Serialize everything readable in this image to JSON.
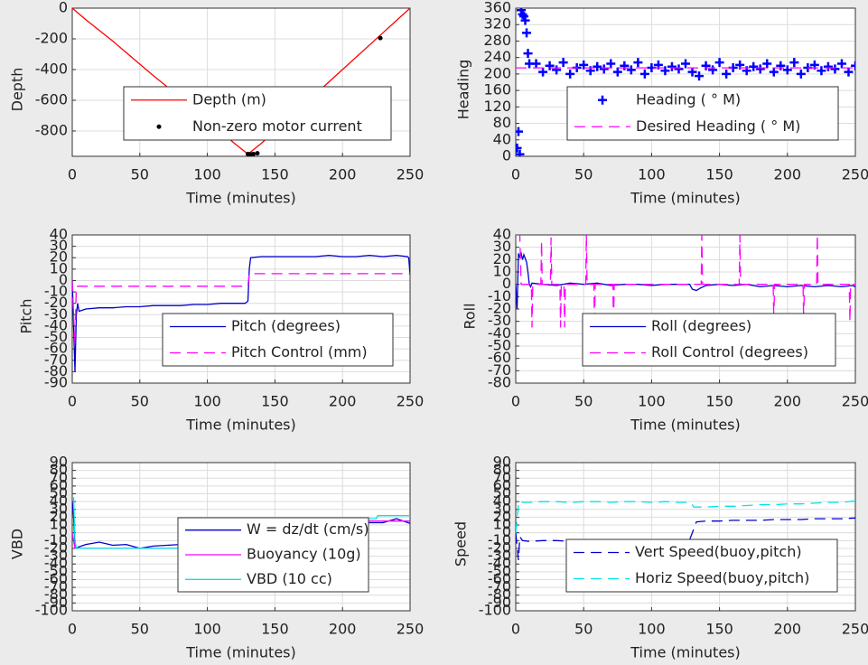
{
  "chart_data": [
    {
      "type": "line",
      "xlabel": "Time (minutes)",
      "ylabel": "Depth",
      "xlim": [
        0,
        250
      ],
      "ylim": [
        -965,
        0
      ],
      "xticks": [
        0,
        50,
        100,
        150,
        200,
        250
      ],
      "yticks": [
        0,
        -200,
        -400,
        -600,
        -800
      ],
      "grid": true,
      "series": [
        {
          "name": "Depth (m)",
          "color": "#ff0000",
          "style": "solid",
          "x": [
            0,
            10,
            20,
            30,
            40,
            50,
            60,
            70,
            80,
            90,
            100,
            110,
            120,
            130,
            140,
            150,
            160,
            170,
            180,
            190,
            200,
            210,
            220,
            230,
            240,
            250
          ],
          "values": [
            0,
            -75,
            -145,
            -215,
            -290,
            -365,
            -440,
            -510,
            -585,
            -660,
            -730,
            -805,
            -880,
            -950,
            -880,
            -800,
            -720,
            -640,
            -560,
            -480,
            -400,
            -320,
            -240,
            -160,
            -80,
            0
          ]
        },
        {
          "name": "Non-zero motor current",
          "color": "#000000",
          "style": "dot",
          "x": [
            130,
            132,
            134,
            137,
            228
          ],
          "values": [
            -950,
            -952,
            -950,
            -945,
            -195
          ]
        }
      ]
    },
    {
      "type": "line",
      "xlabel": "Time (minutes)",
      "ylabel": "Heading",
      "xlim": [
        0,
        250
      ],
      "ylim": [
        0,
        360
      ],
      "xticks": [
        0,
        50,
        100,
        150,
        200,
        250
      ],
      "yticks": [
        0,
        40,
        80,
        120,
        160,
        200,
        240,
        280,
        320,
        360
      ],
      "grid": true,
      "series": [
        {
          "name": "Heading ( ° M)",
          "color": "#0000ff",
          "style": "plus",
          "x": [
            1,
            2,
            3,
            4,
            5,
            6,
            7,
            8,
            9,
            10,
            15,
            20,
            25,
            30,
            35,
            40,
            45,
            50,
            55,
            60,
            65,
            70,
            75,
            80,
            85,
            90,
            95,
            100,
            105,
            110,
            115,
            120,
            125,
            130,
            135,
            140,
            145,
            150,
            155,
            160,
            165,
            170,
            175,
            180,
            185,
            190,
            195,
            200,
            205,
            210,
            215,
            220,
            225,
            230,
            235,
            240,
            245,
            250
          ],
          "values": [
            20,
            60,
            5,
            355,
            345,
            340,
            330,
            300,
            250,
            225,
            225,
            205,
            220,
            210,
            228,
            200,
            215,
            222,
            208,
            218,
            212,
            225,
            205,
            220,
            210,
            228,
            200,
            215,
            222,
            208,
            218,
            212,
            225,
            205,
            195,
            220,
            210,
            228,
            200,
            215,
            222,
            208,
            218,
            212,
            225,
            205,
            220,
            210,
            228,
            200,
            215,
            222,
            208,
            218,
            212,
            225,
            205,
            220
          ]
        },
        {
          "name": "Desired Heading ( ° M)",
          "color": "#ff00ff",
          "style": "dashed",
          "x": [
            0,
            250
          ],
          "values": [
            215,
            215
          ]
        }
      ]
    },
    {
      "type": "line",
      "xlabel": "Time (minutes)",
      "ylabel": "Pitch",
      "xlim": [
        0,
        250
      ],
      "ylim": [
        -90,
        40
      ],
      "xticks": [
        0,
        50,
        100,
        150,
        200,
        250
      ],
      "yticks": [
        40,
        30,
        20,
        10,
        0,
        -10,
        -20,
        -30,
        -40,
        -50,
        -60,
        -70,
        -80,
        -90
      ],
      "grid": true,
      "series": [
        {
          "name": "Pitch (degrees)",
          "color": "#0000cc",
          "style": "solid",
          "x": [
            0,
            1,
            2,
            3,
            4,
            5,
            10,
            20,
            30,
            40,
            50,
            60,
            70,
            80,
            90,
            100,
            110,
            120,
            128,
            130,
            131,
            132,
            140,
            150,
            160,
            170,
            180,
            190,
            200,
            210,
            220,
            230,
            240,
            248,
            249,
            250
          ],
          "values": [
            0,
            -40,
            -80,
            -30,
            -20,
            -27,
            -25,
            -24,
            -24,
            -23,
            -23,
            -22,
            -22,
            -22,
            -21,
            -21,
            -20,
            -20,
            -20,
            -18,
            10,
            20,
            21,
            21,
            21,
            21,
            21,
            22,
            21,
            21,
            22,
            21,
            22,
            21,
            20,
            5
          ]
        },
        {
          "name": "Pitch Control (mm)",
          "color": "#ff00ff",
          "style": "dashed",
          "x": [
            0,
            1,
            2,
            3,
            4,
            130,
            131,
            250
          ],
          "values": [
            0,
            -30,
            -55,
            -5,
            -5,
            -5,
            6,
            6
          ]
        }
      ]
    },
    {
      "type": "line",
      "xlabel": "Time (minutes)",
      "ylabel": "Roll",
      "xlim": [
        0,
        250
      ],
      "ylim": [
        -80,
        40
      ],
      "xticks": [
        0,
        50,
        100,
        150,
        200,
        250
      ],
      "yticks": [
        40,
        30,
        20,
        10,
        0,
        -10,
        -20,
        -30,
        -40,
        -50,
        -60,
        -70,
        -80
      ],
      "grid": true,
      "series": [
        {
          "name": "Roll (degrees)",
          "color": "#0000cc",
          "style": "solid",
          "x": [
            0,
            1,
            2,
            3,
            4,
            5,
            6,
            7,
            8,
            9,
            10,
            11,
            12,
            20,
            30,
            40,
            50,
            60,
            70,
            80,
            90,
            100,
            110,
            120,
            128,
            130,
            133,
            136,
            140,
            150,
            160,
            170,
            180,
            190,
            200,
            210,
            220,
            230,
            240,
            248,
            250
          ],
          "values": [
            0,
            -20,
            25,
            22,
            25,
            20,
            24,
            21,
            18,
            10,
            0,
            -2,
            1,
            0,
            -1,
            1,
            0,
            1,
            -1,
            0,
            0,
            -1,
            0,
            0,
            0,
            -4,
            -5,
            -3,
            -1,
            0,
            -1,
            0,
            -2,
            -1,
            -2,
            -1,
            -2,
            -1,
            -2,
            -1,
            -2
          ]
        },
        {
          "name": "Roll Control (degrees)",
          "color": "#ff00ff",
          "style": "dashed",
          "x": [
            0,
            3,
            4,
            11.5,
            12,
            12.5,
            18.5,
            19,
            19.5,
            25.5,
            26,
            26.5,
            32.5,
            33,
            33.5,
            35.5,
            36,
            36.5,
            51.5,
            52,
            52.5,
            57.5,
            58,
            58.5,
            71.5,
            72,
            72.5,
            136.5,
            137,
            137.5,
            164.5,
            165,
            165.5,
            189.5,
            190,
            190.5,
            211.5,
            212,
            212.5,
            221.5,
            222,
            222.5,
            245.5,
            246,
            246.5,
            250
          ],
          "values": [
            40,
            40,
            0,
            0,
            -35,
            0,
            0,
            35,
            0,
            0,
            38,
            0,
            0,
            -35,
            0,
            0,
            -35,
            0,
            0,
            40,
            0,
            0,
            -35,
            0,
            0,
            -35,
            0,
            0,
            40,
            0,
            0,
            40,
            0,
            0,
            -30,
            0,
            0,
            -30,
            0,
            0,
            40,
            0,
            0,
            -30,
            0,
            0
          ]
        }
      ]
    },
    {
      "type": "line",
      "xlabel": "Time (minutes)",
      "ylabel": "VBD",
      "xlim": [
        0,
        250
      ],
      "ylim": [
        -100,
        90
      ],
      "xticks": [
        0,
        50,
        100,
        150,
        200,
        250
      ],
      "yticks": [
        90,
        80,
        70,
        60,
        50,
        40,
        30,
        20,
        10,
        0,
        -10,
        -20,
        -30,
        -40,
        -50,
        -60,
        -70,
        -80,
        -90,
        -100
      ],
      "grid": true,
      "series": [
        {
          "name": "W = dz/dt (cm/s)",
          "color": "#0000cc",
          "style": "solid",
          "x": [
            0,
            1,
            2,
            3,
            5,
            10,
            20,
            30,
            40,
            50,
            60,
            70,
            80,
            90,
            100,
            110,
            120,
            128,
            130,
            132,
            140,
            150,
            160,
            170,
            180,
            190,
            200,
            210,
            220,
            230,
            240,
            245,
            250
          ],
          "values": [
            40,
            20,
            -15,
            -20,
            -18,
            -15,
            -12,
            -16,
            -15,
            -20,
            -17,
            -16,
            -15,
            -14,
            -14,
            -13,
            -12,
            -12,
            0,
            15,
            16,
            15,
            14,
            15,
            14,
            13,
            12,
            12,
            13,
            13,
            18,
            15,
            12
          ]
        },
        {
          "name": "Buoyancy (10g)",
          "color": "#ff00ff",
          "style": "solid",
          "x": [
            0,
            2,
            3,
            130,
            132,
            250
          ],
          "values": [
            0,
            -20,
            -20,
            -20,
            15,
            15
          ]
        },
        {
          "name": "VBD (10 cc)",
          "color": "#00e5e5",
          "style": "solid",
          "x": [
            0,
            1,
            2,
            3,
            130,
            132,
            225,
            226,
            250
          ],
          "values": [
            45,
            45,
            -10,
            -20,
            -20,
            18,
            18,
            22,
            22
          ]
        }
      ]
    },
    {
      "type": "line",
      "xlabel": "Time (minutes)",
      "ylabel": "Speed",
      "xlim": [
        0,
        250
      ],
      "ylim": [
        -100,
        90
      ],
      "xticks": [
        0,
        50,
        100,
        150,
        200,
        250
      ],
      "yticks": [
        90,
        80,
        70,
        60,
        50,
        40,
        30,
        20,
        10,
        0,
        -10,
        -20,
        -30,
        -40,
        -50,
        -60,
        -70,
        -80,
        -90,
        -100
      ],
      "grid": true,
      "series": [
        {
          "name": "Vert Speed(buoy,pitch)",
          "color": "#0000cc",
          "style": "dashed",
          "x": [
            0,
            2,
            3,
            5,
            10,
            20,
            30,
            40,
            50,
            60,
            70,
            80,
            90,
            100,
            110,
            120,
            128,
            130,
            133,
            140,
            150,
            160,
            170,
            180,
            190,
            200,
            210,
            220,
            230,
            240,
            250
          ],
          "values": [
            0,
            -35,
            -5,
            -10,
            -11,
            -10,
            -10,
            -11,
            -10,
            -10,
            -11,
            -10,
            -10,
            -11,
            -10,
            -10,
            -9,
            0,
            14,
            15,
            15,
            16,
            16,
            16,
            17,
            17,
            17,
            18,
            18,
            18,
            19
          ]
        },
        {
          "name": "Horiz Speed(buoy,pitch)",
          "color": "#00e5e5",
          "style": "dashed",
          "x": [
            0,
            2,
            3,
            5,
            10,
            20,
            30,
            40,
            50,
            60,
            70,
            80,
            90,
            100,
            110,
            120,
            128,
            130,
            131,
            140,
            150,
            160,
            170,
            180,
            190,
            200,
            210,
            220,
            230,
            240,
            250
          ],
          "values": [
            0,
            35,
            41,
            39,
            39,
            40,
            40,
            39,
            40,
            40,
            39,
            40,
            40,
            39,
            40,
            39,
            39,
            36,
            33,
            33,
            34,
            34,
            35,
            36,
            36,
            37,
            37,
            38,
            39,
            39,
            41
          ]
        }
      ]
    }
  ]
}
